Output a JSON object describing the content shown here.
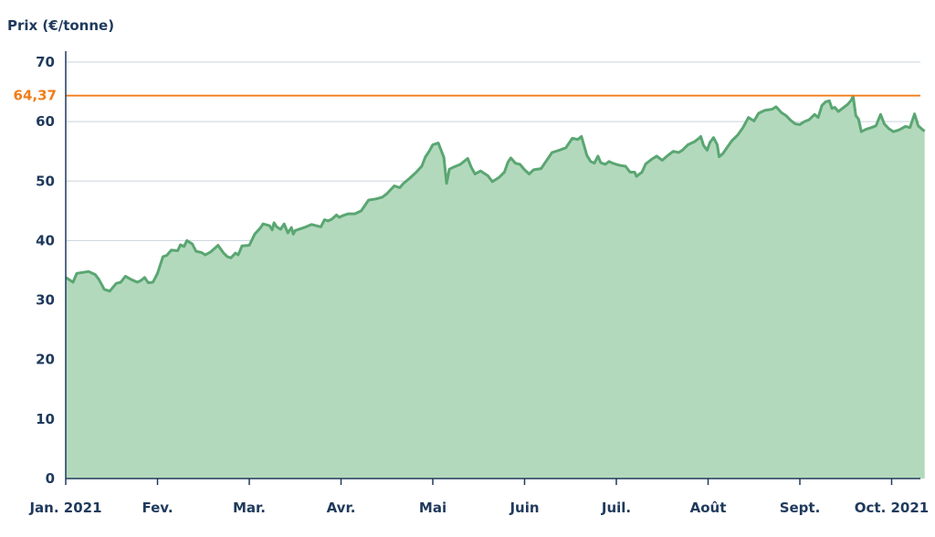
{
  "chart_data": {
    "type": "area",
    "ylabel": "Prix (€/tonne)",
    "ylim": [
      0,
      70
    ],
    "yticks": [
      0,
      10,
      20,
      30,
      40,
      50,
      60,
      70
    ],
    "grid": true,
    "x_month_labels": [
      "Jan. 2021",
      "Fev.",
      "Mar.",
      "Avr.",
      "Mai",
      "Juin",
      "Juil.",
      "Août",
      "Sept.",
      "Oct. 2021"
    ],
    "reference_line": {
      "value": 64.37,
      "label": "64,37",
      "color": "#f07d1a"
    },
    "series": [
      {
        "color": "#5aa672",
        "fill": "#b3d9bd",
        "points": [
          [
            0.0,
            33.8
          ],
          [
            0.08,
            33.0
          ],
          [
            0.12,
            34.5
          ],
          [
            0.25,
            34.8
          ],
          [
            0.32,
            34.3
          ],
          [
            0.36,
            33.5
          ],
          [
            0.42,
            31.8
          ],
          [
            0.48,
            31.5
          ],
          [
            0.55,
            32.8
          ],
          [
            0.6,
            33.0
          ],
          [
            0.65,
            34.0
          ],
          [
            0.72,
            33.4
          ],
          [
            0.78,
            33.0
          ],
          [
            0.82,
            33.3
          ],
          [
            0.86,
            33.8
          ],
          [
            0.9,
            32.9
          ],
          [
            0.95,
            33.0
          ],
          [
            1.0,
            34.5
          ],
          [
            1.06,
            37.3
          ],
          [
            1.1,
            37.5
          ],
          [
            1.15,
            38.4
          ],
          [
            1.22,
            38.3
          ],
          [
            1.25,
            39.3
          ],
          [
            1.29,
            39.0
          ],
          [
            1.32,
            40.0
          ],
          [
            1.38,
            39.4
          ],
          [
            1.42,
            38.2
          ],
          [
            1.48,
            38.0
          ],
          [
            1.52,
            37.6
          ],
          [
            1.58,
            38.1
          ],
          [
            1.66,
            39.2
          ],
          [
            1.72,
            37.9
          ],
          [
            1.76,
            37.3
          ],
          [
            1.8,
            37.1
          ],
          [
            1.85,
            37.9
          ],
          [
            1.88,
            37.6
          ],
          [
            1.92,
            39.1
          ],
          [
            2.0,
            39.2
          ],
          [
            2.06,
            41.1
          ],
          [
            2.12,
            42.1
          ],
          [
            2.15,
            42.8
          ],
          [
            2.22,
            42.5
          ],
          [
            2.25,
            41.8
          ],
          [
            2.27,
            43.0
          ],
          [
            2.3,
            42.3
          ],
          [
            2.34,
            41.9
          ],
          [
            2.38,
            42.8
          ],
          [
            2.42,
            41.3
          ],
          [
            2.46,
            42.2
          ],
          [
            2.48,
            41.1
          ],
          [
            2.5,
            41.7
          ],
          [
            2.6,
            42.2
          ],
          [
            2.68,
            42.7
          ],
          [
            2.78,
            42.3
          ],
          [
            2.82,
            43.5
          ],
          [
            2.86,
            43.3
          ],
          [
            2.9,
            43.6
          ],
          [
            2.95,
            44.3
          ],
          [
            2.98,
            43.9
          ],
          [
            3.02,
            44.2
          ],
          [
            3.08,
            44.5
          ],
          [
            3.15,
            44.5
          ],
          [
            3.22,
            45.0
          ],
          [
            3.3,
            46.8
          ],
          [
            3.38,
            47.0
          ],
          [
            3.45,
            47.3
          ],
          [
            3.5,
            47.9
          ],
          [
            3.58,
            49.2
          ],
          [
            3.64,
            48.9
          ],
          [
            3.68,
            49.6
          ],
          [
            3.75,
            50.5
          ],
          [
            3.82,
            51.5
          ],
          [
            3.88,
            52.5
          ],
          [
            3.92,
            54.1
          ],
          [
            3.96,
            55.0
          ],
          [
            4.0,
            56.1
          ],
          [
            4.06,
            56.4
          ],
          [
            4.12,
            54.0
          ],
          [
            4.15,
            49.6
          ],
          [
            4.18,
            52.0
          ],
          [
            4.22,
            52.3
          ],
          [
            4.3,
            52.8
          ],
          [
            4.38,
            53.8
          ],
          [
            4.42,
            52.3
          ],
          [
            4.46,
            51.2
          ],
          [
            4.52,
            51.7
          ],
          [
            4.6,
            50.9
          ],
          [
            4.65,
            49.9
          ],
          [
            4.72,
            50.6
          ],
          [
            4.78,
            51.5
          ],
          [
            4.82,
            53.2
          ],
          [
            4.85,
            53.9
          ],
          [
            4.9,
            53.0
          ],
          [
            4.95,
            52.8
          ],
          [
            5.0,
            51.9
          ],
          [
            5.05,
            51.2
          ],
          [
            5.1,
            51.9
          ],
          [
            5.18,
            52.1
          ],
          [
            5.22,
            53.0
          ],
          [
            5.3,
            54.8
          ],
          [
            5.38,
            55.2
          ],
          [
            5.45,
            55.6
          ],
          [
            5.52,
            57.2
          ],
          [
            5.58,
            57.0
          ],
          [
            5.62,
            57.5
          ],
          [
            5.68,
            54.3
          ],
          [
            5.72,
            53.3
          ],
          [
            5.76,
            53.0
          ],
          [
            5.8,
            54.2
          ],
          [
            5.83,
            53.1
          ],
          [
            5.88,
            52.8
          ],
          [
            5.92,
            53.3
          ],
          [
            5.96,
            53.0
          ],
          [
            6.0,
            52.8
          ],
          [
            6.05,
            52.6
          ],
          [
            6.1,
            52.5
          ],
          [
            6.15,
            51.5
          ],
          [
            6.2,
            51.5
          ],
          [
            6.22,
            50.8
          ],
          [
            6.28,
            51.5
          ],
          [
            6.32,
            52.9
          ],
          [
            6.38,
            53.6
          ],
          [
            6.44,
            54.2
          ],
          [
            6.5,
            53.5
          ],
          [
            6.56,
            54.3
          ],
          [
            6.62,
            55.0
          ],
          [
            6.68,
            54.8
          ],
          [
            6.72,
            55.2
          ],
          [
            6.78,
            56.1
          ],
          [
            6.85,
            56.6
          ],
          [
            6.9,
            57.2
          ],
          [
            6.92,
            57.5
          ],
          [
            6.95,
            56.0
          ],
          [
            6.99,
            55.2
          ],
          [
            7.02,
            56.5
          ],
          [
            7.06,
            57.3
          ],
          [
            7.1,
            56.1
          ],
          [
            7.12,
            54.1
          ],
          [
            7.16,
            54.6
          ],
          [
            7.2,
            55.5
          ],
          [
            7.26,
            56.8
          ],
          [
            7.32,
            57.7
          ],
          [
            7.38,
            59.0
          ],
          [
            7.44,
            60.7
          ],
          [
            7.5,
            60.1
          ],
          [
            7.55,
            61.4
          ],
          [
            7.62,
            61.9
          ],
          [
            7.7,
            62.1
          ],
          [
            7.74,
            62.5
          ],
          [
            7.8,
            61.5
          ],
          [
            7.85,
            61.0
          ],
          [
            7.9,
            60.2
          ],
          [
            7.95,
            59.6
          ],
          [
            8.0,
            59.5
          ],
          [
            8.05,
            60.0
          ],
          [
            8.1,
            60.3
          ],
          [
            8.16,
            61.2
          ],
          [
            8.2,
            60.7
          ],
          [
            8.24,
            62.7
          ],
          [
            8.28,
            63.3
          ],
          [
            8.32,
            63.5
          ],
          [
            8.35,
            62.2
          ],
          [
            8.38,
            62.4
          ],
          [
            8.42,
            61.7
          ],
          [
            8.48,
            62.4
          ],
          [
            8.52,
            62.9
          ],
          [
            8.56,
            63.6
          ],
          [
            8.58,
            64.3
          ],
          [
            8.61,
            61.0
          ],
          [
            8.64,
            60.4
          ],
          [
            8.67,
            58.3
          ],
          [
            8.72,
            58.7
          ],
          [
            8.78,
            59.0
          ],
          [
            8.83,
            59.3
          ],
          [
            8.88,
            61.2
          ],
          [
            8.92,
            59.6
          ],
          [
            8.97,
            58.8
          ],
          [
            9.0,
            58.5
          ],
          [
            9.02,
            58.3
          ],
          [
            9.08,
            58.6
          ],
          [
            9.15,
            59.2
          ],
          [
            9.2,
            59.0
          ],
          [
            9.25,
            61.3
          ],
          [
            9.29,
            59.3
          ],
          [
            9.34,
            58.6
          ],
          [
            9.36,
            58.4
          ]
        ]
      }
    ]
  }
}
